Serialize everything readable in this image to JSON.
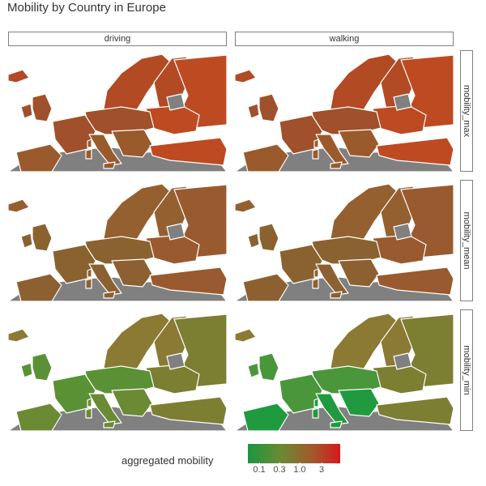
{
  "title": "Mobility by Country in Europe",
  "facets": {
    "columns": [
      "driving",
      "walking"
    ],
    "rows": [
      "mobility_max",
      "mobility_mean",
      "mobility_min"
    ]
  },
  "legend": {
    "title": "aggregated mobility",
    "scale": "log",
    "breaks": [
      "0.1",
      "0.3",
      "1.0",
      "3"
    ],
    "colors": {
      "low": "#1a9641",
      "mid": "#a05a2c",
      "high": "#d7191c",
      "missing": "#808080"
    }
  },
  "map": {
    "region": "Europe",
    "border_color": "#ffffff",
    "sea_color": "#ffffff"
  },
  "fills": {
    "mobility_max": {
      "driving": {
        "west": "#a0502a",
        "north": "#b24a24",
        "east": "#be4a22",
        "south": "#9a5a2c",
        "africa": "#808080",
        "missing": "#808080"
      },
      "walking": {
        "west": "#a0502a",
        "north": "#b24a24",
        "east": "#be4a22",
        "south": "#9a5a2c",
        "africa": "#808080",
        "missing": "#808080"
      }
    },
    "mobility_mean": {
      "driving": {
        "west": "#8a6230",
        "north": "#946030",
        "east": "#985a2e",
        "south": "#8c6030",
        "africa": "#808080",
        "missing": "#808080"
      },
      "walking": {
        "west": "#8a6230",
        "north": "#946030",
        "east": "#985a2e",
        "south": "#8c6030",
        "africa": "#808080",
        "missing": "#808080"
      }
    },
    "mobility_min": {
      "driving": {
        "west": "#5a9134",
        "north": "#8a7a33",
        "east": "#7c7e32",
        "south": "#6a8a34",
        "africa": "#808080",
        "missing": "#808080"
      },
      "walking": {
        "west": "#4a963a",
        "north": "#8a7a33",
        "east": "#7c7e32",
        "south": "#1f9a3f",
        "africa": "#808080",
        "missing": "#808080"
      }
    }
  }
}
